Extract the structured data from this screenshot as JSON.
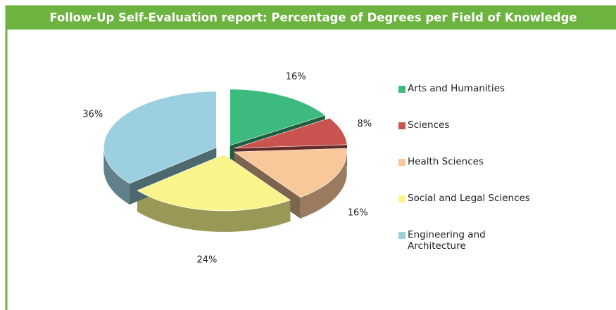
{
  "chart_data": {
    "type": "pie3d",
    "title": "Follow-Up Self-Evaluation report: Percentage of Degrees per Field of Knowledge",
    "categories": [
      "Arts and Humanities",
      "Sciences",
      "Health Sciences",
      "Social and Legal Sciences",
      "Engineering and Architecture"
    ],
    "values": [
      16,
      8,
      16,
      24,
      36
    ],
    "value_labels": [
      "16%",
      "8%",
      "16%",
      "24%",
      "36%"
    ],
    "colors": [
      "#3dbb7e",
      "#c9534f",
      "#f8c79a",
      "#f9f58c",
      "#9ccfdf"
    ],
    "legend": "right"
  }
}
